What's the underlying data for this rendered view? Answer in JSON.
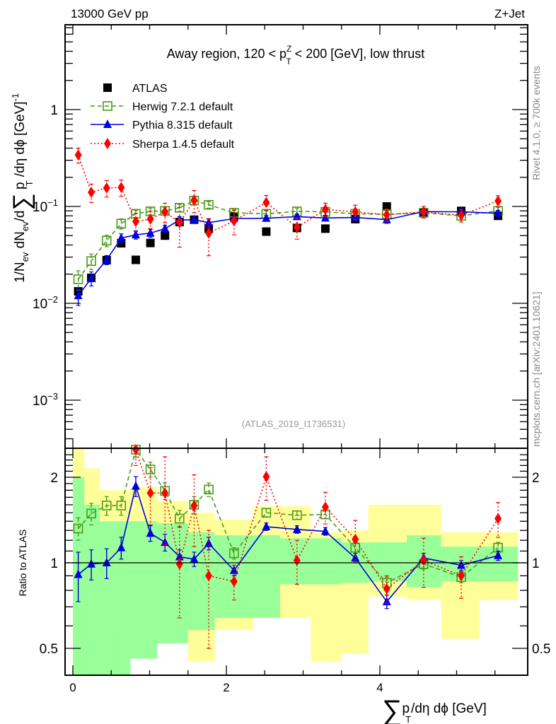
{
  "header": {
    "left": "13000 GeV pp",
    "right": "Z+Jet"
  },
  "side_labels": {
    "rivet": "Rivet 4.1.0, ≥ 700k events",
    "mcplots": "mcplots.cern.ch [arXiv:2401.10621]"
  },
  "analysis_id": "(ATLAS_2019_I1736531)",
  "chart_data": [
    {
      "type": "scatter",
      "panel": "main",
      "title_parts": [
        "Away region, 120 < p",
        "Z",
        "T",
        " < 200 [GeV], low thrust"
      ],
      "title": "Away region, 120 < p_T^Z < 200 [GeV], low thrust",
      "ylabel": "1/N_ev dN_ev/d∑ p_T /dη dϕ [GeV]^-1",
      "yscale": "log",
      "ylim": [
        0.0003,
        8
      ],
      "xlim": [
        -0.1,
        5.93
      ],
      "y_ticks": [
        {
          "value": 0.001,
          "label": "10",
          "exp": "−3"
        },
        {
          "value": 0.01,
          "label": "10",
          "exp": "−2"
        },
        {
          "value": 0.1,
          "label": "10",
          "exp": "−1"
        },
        {
          "value": 1,
          "label": "1",
          "exp": ""
        }
      ],
      "legend_position": "top-left",
      "x": [
        0.07,
        0.24,
        0.44,
        0.63,
        0.82,
        1.01,
        1.2,
        1.39,
        1.58,
        1.77,
        2.1,
        2.52,
        2.92,
        3.29,
        3.68,
        4.09,
        4.57,
        5.06,
        5.54
      ],
      "series": [
        {
          "name": "ATLAS",
          "color": "#000000",
          "marker": "square-filled",
          "line": "none",
          "values": [
            0.0133,
            0.0183,
            0.0279,
            0.0417,
            0.0281,
            0.042,
            0.05,
            0.069,
            0.073,
            0.059,
            0.079,
            0.055,
            0.06,
            0.059,
            0.074,
            0.1,
            0.087,
            0.09,
            0.08
          ]
        },
        {
          "name": "Herwig 7.2.1 default",
          "color": "#4a9a1a",
          "marker": "square-open",
          "line": "dashed",
          "values": [
            0.0177,
            0.0273,
            0.0444,
            0.0665,
            0.084,
            0.089,
            0.09,
            0.097,
            0.115,
            0.104,
            0.086,
            0.084,
            0.089,
            0.088,
            0.084,
            0.083,
            0.086,
            0.08,
            0.09
          ],
          "errors": [
            0.004,
            0.005,
            0.006,
            0.008,
            0.007,
            0.007,
            0.007,
            0.008,
            0.01,
            0.008,
            0.007,
            0.007,
            0.007,
            0.007,
            0.007,
            0.007,
            0.007,
            0.007,
            0.008
          ]
        },
        {
          "name": "Pythia 8.315 default",
          "color": "#0000dd",
          "marker": "triangle",
          "line": "solid",
          "values": [
            0.012,
            0.0181,
            0.0281,
            0.0471,
            0.051,
            0.053,
            0.059,
            0.0724,
            0.0729,
            0.068,
            0.075,
            0.0755,
            0.0785,
            0.076,
            0.077,
            0.073,
            0.0885,
            0.088,
            0.085
          ],
          "errors": [
            0.0025,
            0.003,
            0.003,
            0.005,
            0.005,
            0.005,
            0.005,
            0.006,
            0.006,
            0.006,
            0.005,
            0.005,
            0.005,
            0.005,
            0.005,
            0.006,
            0.006,
            0.006,
            0.006
          ]
        },
        {
          "name": "Sherpa 1.4.5 default",
          "color": "#ff0000",
          "marker": "diamond",
          "line": "dotted",
          "values": [
            0.34,
            0.14,
            0.155,
            0.157,
            0.07,
            0.074,
            0.088,
            0.068,
            0.116,
            0.053,
            0.071,
            0.11,
            0.061,
            0.093,
            0.088,
            0.082,
            0.088,
            0.081,
            0.114
          ],
          "errors": [
            0.06,
            0.03,
            0.03,
            0.03,
            0.015,
            0.015,
            0.02,
            0.03,
            0.03,
            0.022,
            0.02,
            0.02,
            0.015,
            0.015,
            0.015,
            0.012,
            0.012,
            0.012,
            0.015
          ]
        }
      ]
    },
    {
      "type": "scatter",
      "panel": "ratio",
      "ylabel": "Ratio to ATLAS",
      "xlabel": "∑ p_T /dη dϕ [GeV]",
      "xlabel_parts": [
        "∑",
        "p",
        "T",
        "/dη dϕ [GeV]"
      ],
      "yscale": "log",
      "ylim": [
        0.4,
        2.53
      ],
      "xlim": [
        -0.1,
        5.93
      ],
      "x_ticks": [
        {
          "value": 0,
          "label": "0"
        },
        {
          "value": 2,
          "label": "2"
        },
        {
          "value": 4,
          "label": "4"
        }
      ],
      "y_ticks": [
        {
          "value": 0.5,
          "label": "0.5"
        },
        {
          "value": 1,
          "label": "1"
        },
        {
          "value": 2,
          "label": "2"
        }
      ],
      "reference_line": 1,
      "bin_edges": [
        0,
        0.15,
        0.35,
        0.55,
        0.75,
        0.9,
        1.1,
        1.3,
        1.5,
        1.7,
        1.85,
        2.35,
        2.7,
        3.1,
        3.5,
        3.85,
        4.35,
        4.8,
        5.3,
        5.8
      ],
      "bands": [
        {
          "name": "total uncertainty",
          "color": "#ffff99",
          "low": [
            0.3,
            0.3,
            0.6,
            0.6,
            0.64,
            0.6,
            0.6,
            0.6,
            0.45,
            0.45,
            0.58,
            0.64,
            0.64,
            0.45,
            0.48,
            0.76,
            0.74,
            0.54,
            0.74
          ],
          "high": [
            2.53,
            2.15,
            1.8,
            1.8,
            1.85,
            1.85,
            1.65,
            1.65,
            1.5,
            1.5,
            1.42,
            1.58,
            1.58,
            1.28,
            1.3,
            1.6,
            1.6,
            1.28,
            1.28
          ]
        },
        {
          "name": "stat uncertainty",
          "color": "#99ff99",
          "low": [
            0.4,
            0.4,
            0.4,
            0.4,
            0.46,
            0.46,
            0.52,
            0.52,
            0.58,
            0.58,
            0.64,
            0.64,
            0.84,
            0.84,
            0.85,
            0.86,
            0.82,
            0.86,
            0.86
          ],
          "high": [
            2.0,
            1.6,
            1.4,
            1.4,
            1.4,
            1.4,
            1.38,
            1.38,
            1.28,
            1.28,
            1.25,
            1.25,
            1.22,
            1.22,
            1.18,
            1.18,
            1.25,
            1.14,
            1.14
          ]
        }
      ],
      "x": [
        0.07,
        0.24,
        0.44,
        0.63,
        0.82,
        1.01,
        1.2,
        1.39,
        1.58,
        1.77,
        2.1,
        2.52,
        2.92,
        3.29,
        3.68,
        4.09,
        4.57,
        5.06,
        5.54
      ],
      "series": [
        {
          "name": "Herwig 7.2.1 default",
          "color": "#4a9a1a",
          "marker": "square-open",
          "line": "dashed",
          "values": [
            1.32,
            1.49,
            1.59,
            1.59,
            2.5,
            2.13,
            1.79,
            1.43,
            1.6,
            1.81,
            1.08,
            1.5,
            1.47,
            1.48,
            1.13,
            0.85,
            0.99,
            0.89,
            1.13
          ],
          "errors": [
            0.12,
            0.13,
            0.12,
            0.12,
            0.15,
            0.13,
            0.12,
            0.1,
            0.11,
            0.1,
            0.05,
            0.05,
            0.05,
            0.05,
            0.05,
            0.04,
            0.04,
            0.04,
            0.05
          ]
        },
        {
          "name": "Pythia 8.315 default",
          "color": "#0000dd",
          "marker": "triangle",
          "line": "solid",
          "values": [
            0.91,
            0.99,
            1.0,
            1.13,
            1.86,
            1.27,
            1.18,
            1.05,
            1.03,
            1.17,
            0.94,
            1.34,
            1.31,
            1.29,
            1.04,
            0.73,
            1.04,
            0.98,
            1.06
          ],
          "errors": [
            0.18,
            0.12,
            0.12,
            0.1,
            0.15,
            0.08,
            0.08,
            0.06,
            0.06,
            0.06,
            0.04,
            0.04,
            0.04,
            0.04,
            0.04,
            0.04,
            0.04,
            0.04,
            0.04
          ]
        },
        {
          "name": "Sherpa 1.4.5 default",
          "color": "#ff0000",
          "marker": "diamond",
          "line": "dotted",
          "values": [
            null,
            null,
            null,
            null,
            2.5,
            1.76,
            1.76,
            0.99,
            1.59,
            0.9,
            0.86,
            2.01,
            1.02,
            1.57,
            1.21,
            0.81,
            1.02,
            0.9,
            1.43
          ],
          "errors": [
            null,
            null,
            null,
            null,
            0.3,
            0.4,
            0.6,
            0.35,
            0.45,
            0.4,
            0.12,
            0.35,
            0.18,
            0.2,
            0.2,
            0.09,
            0.2,
            0.15,
            0.2
          ]
        }
      ]
    }
  ]
}
